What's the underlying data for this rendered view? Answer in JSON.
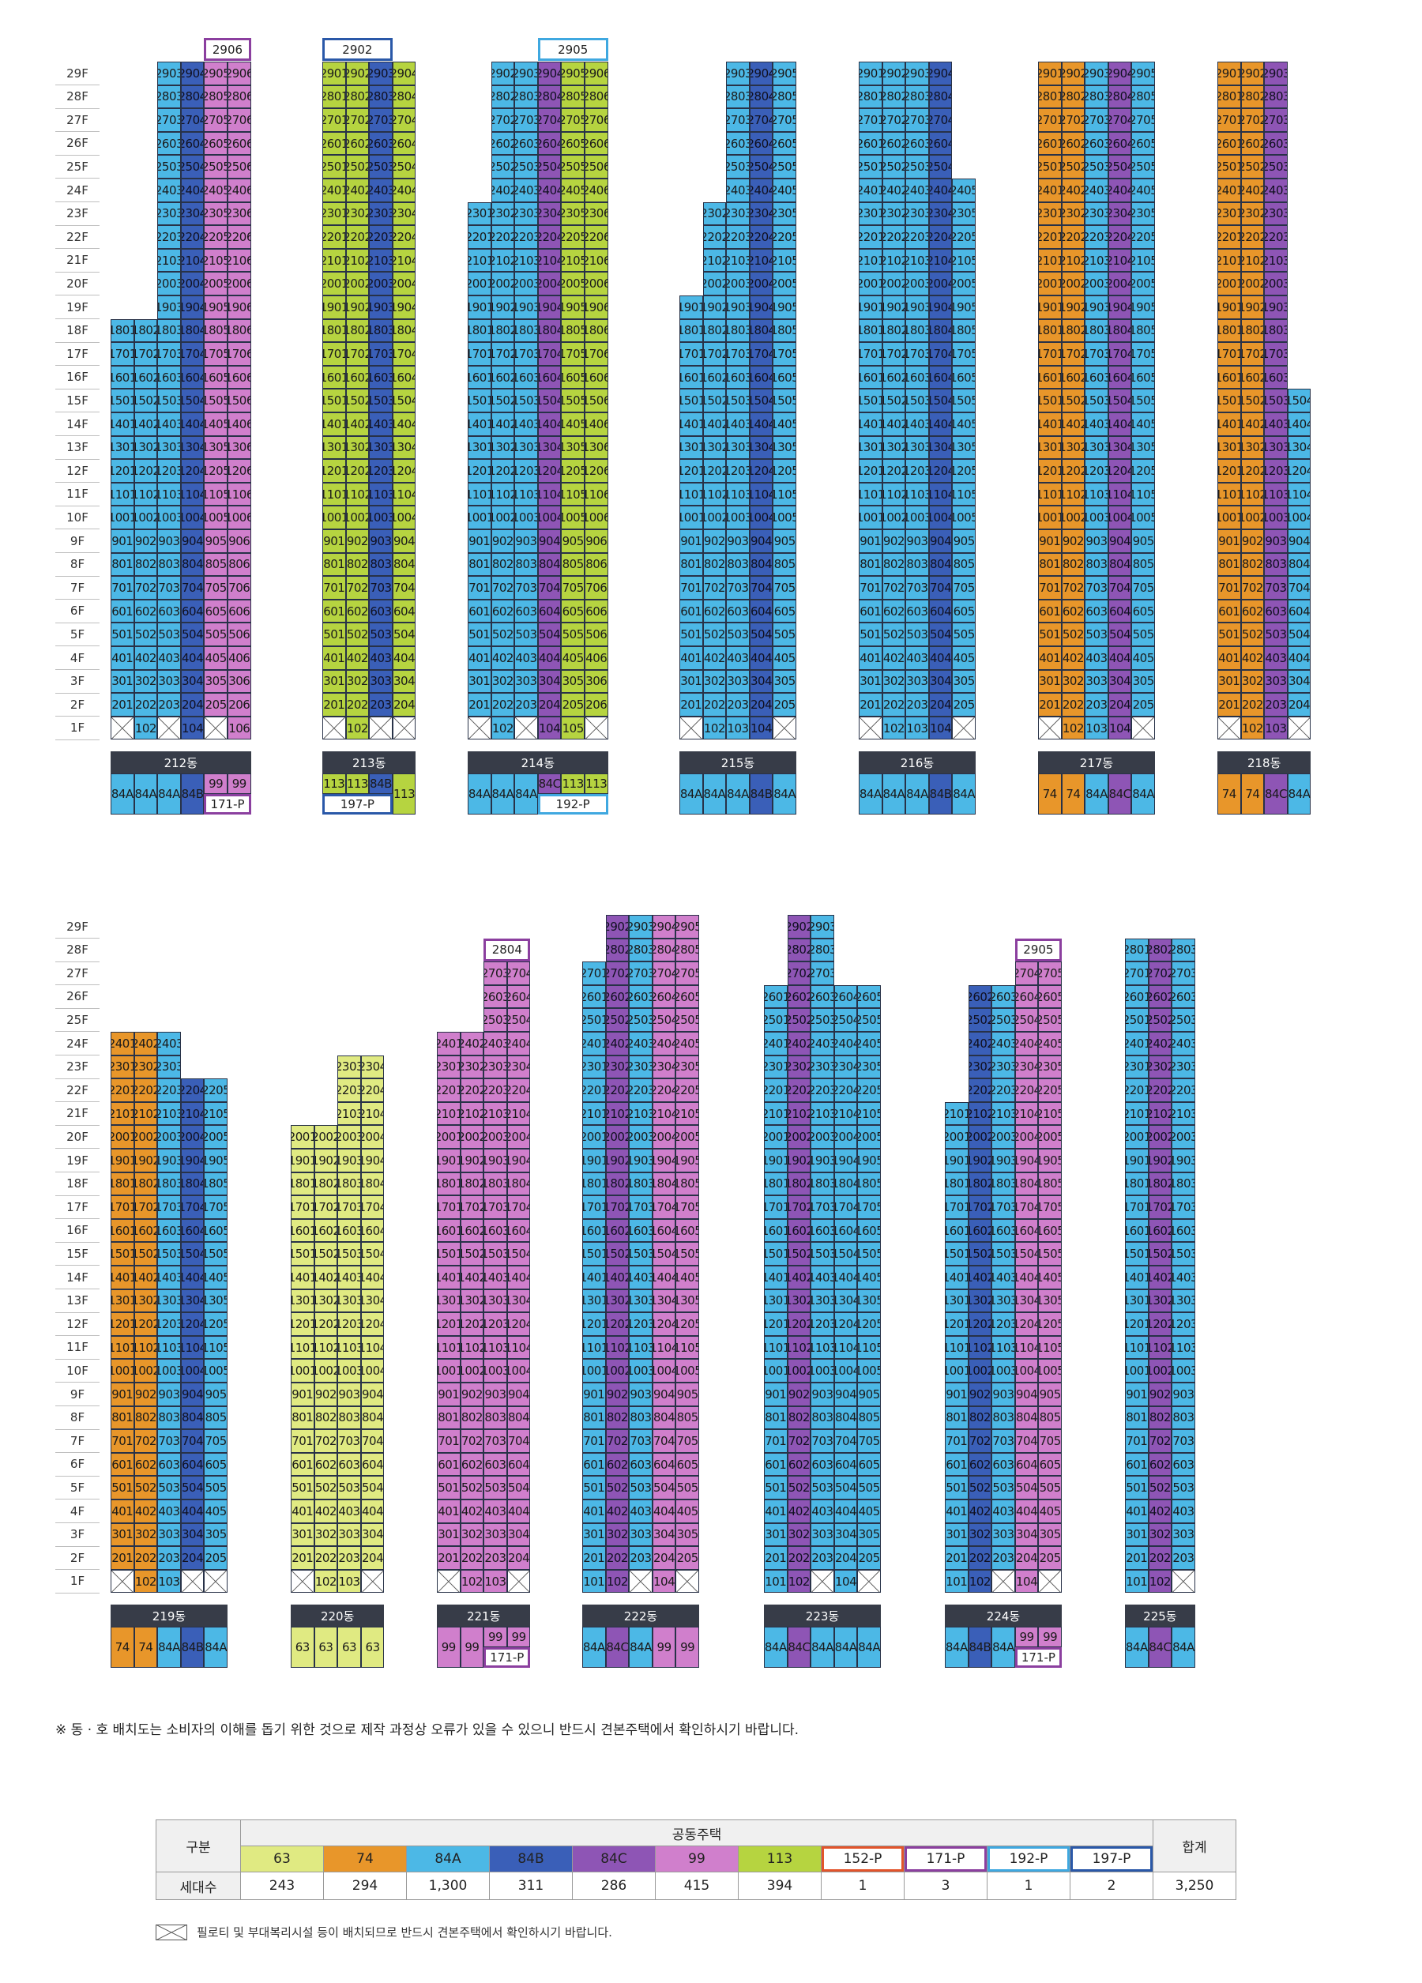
{
  "colors": {
    "63": "#e0ea82",
    "74": "#e8962a",
    "84A": "#4cb8e6",
    "84B": "#3a5fb8",
    "84C": "#8e55b5",
    "99": "#d07fcc",
    "113": "#b6d440",
    "152-P": "#e2542b",
    "171-P": "#8b3f9f",
    "192-P": "#3fa8e0",
    "197-P": "#2a58a8"
  },
  "floors": [
    "29F",
    "28F",
    "27F",
    "26F",
    "25F",
    "24F",
    "23F",
    "22F",
    "21F",
    "20F",
    "19F",
    "18F",
    "17F",
    "16F",
    "15F",
    "14F",
    "13F",
    "12F",
    "11F",
    "10F",
    "9F",
    "8F",
    "7F",
    "6F",
    "5F",
    "4F",
    "3F",
    "2F",
    "1F"
  ],
  "blocks": [
    {
      "buildings": [
        {
          "name": "212동",
          "types": [
            "84A",
            "84A",
            "84A",
            "84B",
            "99",
            "99"
          ],
          "tops": [
            18,
            18,
            29,
            29,
            29,
            29
          ],
          "pilotis": [
            1,
            0,
            1,
            0,
            1,
            0
          ],
          "penthouses": [
            {
              "label": "2906",
              "cols": [
                4,
                5
              ],
              "type": "171-P"
            }
          ],
          "type_row": [
            {
              "label": "84A"
            },
            {
              "label": "84A"
            },
            {
              "label": "84A"
            },
            {
              "label": "84B"
            },
            {
              "label": "99",
              "split": true
            },
            {
              "label": "99",
              "split": true
            }
          ],
          "p_boxes": [
            {
              "label": "171-P",
              "cols": [
                4,
                5
              ],
              "type": "171-P"
            }
          ]
        },
        {
          "name": "213동",
          "types": [
            "113",
            "113",
            "84B",
            "113"
          ],
          "tops": [
            29,
            29,
            29,
            29
          ],
          "pilotis": [
            1,
            0,
            1,
            1
          ],
          "penthouses": [
            {
              "label": "2902",
              "cols": [
                0,
                2
              ],
              "type": "197-P"
            }
          ],
          "type_row": [
            {
              "label": "113",
              "split": true
            },
            {
              "label": "113",
              "split": true
            },
            {
              "label": "84B",
              "split": true
            },
            {
              "label": "113"
            }
          ],
          "p_boxes": [
            {
              "label": "197-P",
              "cols": [
                0,
                2
              ],
              "type": "197-P"
            }
          ]
        },
        {
          "name": "214동",
          "types": [
            "84A",
            "84A",
            "84A",
            "84C",
            "113",
            "113"
          ],
          "tops": [
            23,
            29,
            29,
            29,
            29,
            29
          ],
          "pilotis": [
            1,
            0,
            1,
            0,
            0,
            1
          ],
          "penthouses": [
            {
              "label": "2905",
              "cols": [
                3,
                5
              ],
              "type": "192-P"
            }
          ],
          "type_row": [
            {
              "label": "84A"
            },
            {
              "label": "84A"
            },
            {
              "label": "84A"
            },
            {
              "label": "84C",
              "split": true
            },
            {
              "label": "113",
              "split": true
            },
            {
              "label": "113",
              "split": true
            }
          ],
          "p_boxes": [
            {
              "label": "192-P",
              "cols": [
                3,
                5
              ],
              "type": "192-P"
            }
          ]
        },
        {
          "name": "215동",
          "types": [
            "84A",
            "84A",
            "84A",
            "84B",
            "84A"
          ],
          "tops": [
            19,
            23,
            29,
            29,
            29
          ],
          "pilotis": [
            1,
            0,
            0,
            0,
            1
          ],
          "penthouses": [],
          "type_row": [
            {
              "label": "84A"
            },
            {
              "label": "84A"
            },
            {
              "label": "84A"
            },
            {
              "label": "84B"
            },
            {
              "label": "84A"
            }
          ],
          "p_boxes": []
        },
        {
          "name": "216동",
          "types": [
            "84A",
            "84A",
            "84A",
            "84B",
            "84A"
          ],
          "tops": [
            29,
            29,
            29,
            29,
            24
          ],
          "pilotis": [
            1,
            0,
            0,
            0,
            1
          ],
          "penthouses": [],
          "type_row": [
            {
              "label": "84A"
            },
            {
              "label": "84A"
            },
            {
              "label": "84A"
            },
            {
              "label": "84B"
            },
            {
              "label": "84A"
            }
          ],
          "p_boxes": []
        },
        {
          "name": "217동",
          "types": [
            "74",
            "74",
            "84A",
            "84C",
            "84A"
          ],
          "tops": [
            29,
            29,
            29,
            29,
            29
          ],
          "pilotis": [
            1,
            0,
            0,
            0,
            1
          ],
          "penthouses": [],
          "type_row": [
            {
              "label": "74"
            },
            {
              "label": "74"
            },
            {
              "label": "84A"
            },
            {
              "label": "84C"
            },
            {
              "label": "84A"
            }
          ],
          "p_boxes": []
        },
        {
          "name": "218동",
          "types": [
            "74",
            "74",
            "84C",
            "84A"
          ],
          "tops": [
            29,
            29,
            29,
            15
          ],
          "pilotis": [
            1,
            0,
            0,
            1
          ],
          "penthouses": [],
          "type_row": [
            {
              "label": "74"
            },
            {
              "label": "74"
            },
            {
              "label": "84C"
            },
            {
              "label": "84A"
            }
          ],
          "p_boxes": []
        }
      ]
    },
    {
      "buildings": [
        {
          "name": "219동",
          "types": [
            "74",
            "74",
            "84A",
            "84B",
            "84A"
          ],
          "tops": [
            24,
            24,
            24,
            22,
            22
          ],
          "pilotis": [
            1,
            0,
            0,
            1,
            1
          ],
          "penthouses": [],
          "type_row": [
            {
              "label": "74"
            },
            {
              "label": "74"
            },
            {
              "label": "84A"
            },
            {
              "label": "84B"
            },
            {
              "label": "84A"
            }
          ],
          "p_boxes": []
        },
        {
          "name": "220동",
          "types": [
            "63",
            "63",
            "63",
            "63"
          ],
          "tops": [
            20,
            20,
            23,
            23
          ],
          "pilotis": [
            1,
            0,
            0,
            1
          ],
          "penthouses": [],
          "type_row": [
            {
              "label": "63"
            },
            {
              "label": "63"
            },
            {
              "label": "63"
            },
            {
              "label": "63"
            }
          ],
          "p_boxes": []
        },
        {
          "name": "221동",
          "types": [
            "99",
            "99",
            "99",
            "99"
          ],
          "tops": [
            24,
            24,
            27,
            27
          ],
          "pilotis": [
            1,
            0,
            0,
            1
          ],
          "penthouses": [
            {
              "label": "2804",
              "cols": [
                2,
                3
              ],
              "type": "171-P"
            }
          ],
          "type_row": [
            {
              "label": "99"
            },
            {
              "label": "99"
            },
            {
              "label": "99",
              "split": true
            },
            {
              "label": "99",
              "split": true
            }
          ],
          "p_boxes": [
            {
              "label": "171-P",
              "cols": [
                2,
                3
              ],
              "type": "171-P"
            }
          ]
        },
        {
          "name": "222동",
          "types": [
            "84A",
            "84C",
            "84A",
            "99",
            "99"
          ],
          "tops": [
            27,
            29,
            29,
            29,
            29
          ],
          "pilotis": [
            0,
            0,
            1,
            0,
            1
          ],
          "penthouses": [],
          "type_row": [
            {
              "label": "84A"
            },
            {
              "label": "84C"
            },
            {
              "label": "84A"
            },
            {
              "label": "99"
            },
            {
              "label": "99"
            }
          ],
          "p_boxes": []
        },
        {
          "name": "223동",
          "types": [
            "84A",
            "84C",
            "84A",
            "84A",
            "84A"
          ],
          "tops": [
            26,
            29,
            29,
            26,
            26
          ],
          "pilotis": [
            0,
            0,
            1,
            0,
            1
          ],
          "penthouses": [],
          "type_row": [
            {
              "label": "84A"
            },
            {
              "label": "84C"
            },
            {
              "label": "84A"
            },
            {
              "label": "84A"
            },
            {
              "label": "84A"
            }
          ],
          "p_boxes": []
        },
        {
          "name": "224동",
          "types": [
            "84A",
            "84B",
            "84A",
            "99",
            "99"
          ],
          "tops": [
            21,
            26,
            26,
            27,
            27
          ],
          "pilotis": [
            0,
            0,
            1,
            0,
            1
          ],
          "penthouses": [
            {
              "label": "2905",
              "cols": [
                3,
                4
              ],
              "type": "171-P"
            }
          ],
          "type_row": [
            {
              "label": "84A"
            },
            {
              "label": "84B"
            },
            {
              "label": "84A"
            },
            {
              "label": "99",
              "split": true
            },
            {
              "label": "99",
              "split": true
            }
          ],
          "p_boxes": [
            {
              "label": "171-P",
              "cols": [
                3,
                4
              ],
              "type": "171-P"
            }
          ]
        },
        {
          "name": "225동",
          "types": [
            "84A",
            "84C",
            "84A"
          ],
          "tops": [
            28,
            28,
            28
          ],
          "pilotis": [
            0,
            0,
            1
          ],
          "penthouses": [],
          "type_row": [
            {
              "label": "84A"
            },
            {
              "label": "84C"
            },
            {
              "label": "84A"
            }
          ],
          "p_boxes": []
        }
      ]
    }
  ],
  "note": "※ 동 · 호 배치도는 소비자의 이해를 돕기 위한 것으로 제작 과정상 오류가 있을 수 있으니 반드시 견본주택에서 확인하시기 바랍니다.",
  "summary": {
    "row_header": "구분",
    "group_header": "공동주택",
    "total_header": "합계",
    "count_label": "세대수",
    "types": [
      "63",
      "74",
      "84A",
      "84B",
      "84C",
      "99",
      "113",
      "152-P",
      "171-P",
      "192-P",
      "197-P"
    ],
    "counts": [
      "243",
      "294",
      "1,300",
      "311",
      "286",
      "415",
      "394",
      "1",
      "3",
      "1",
      "2"
    ],
    "total": "3,250"
  },
  "legend_note": "필로티 및 부대복리시설 등이 배치되므로 반드시 견본주택에서 확인하시기 바랍니다."
}
